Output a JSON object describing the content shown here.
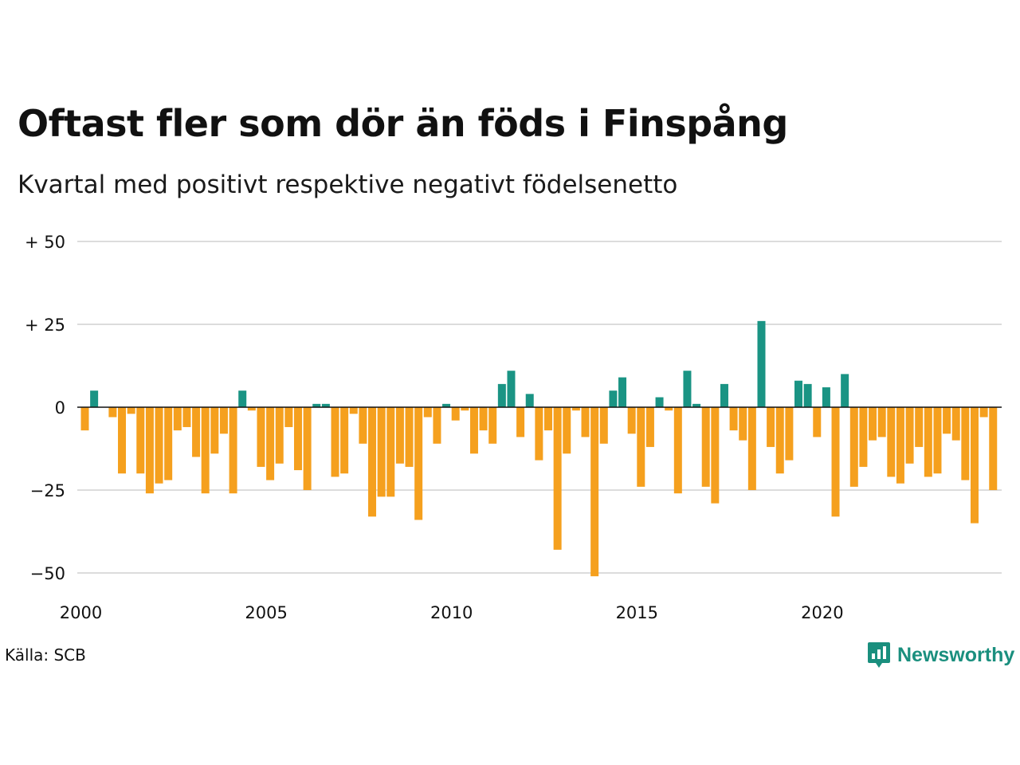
{
  "title": "Oftast fler som dör än föds i Finspång",
  "subtitle": "Kvartal med positivt respektive negativt födelsenetto",
  "source": "Källa: SCB",
  "brand": "Newsworthy",
  "colors": {
    "positive": "#1a9484",
    "negative": "#f5a01e",
    "grid": "#dcdcdc",
    "zero": "#111111",
    "brand": "#1a8f7e"
  },
  "chart_data": {
    "type": "bar",
    "x_start_year": 2000,
    "periods_per_year": 4,
    "values": [
      -7,
      5,
      0,
      -3,
      -20,
      -2,
      -20,
      -26,
      -23,
      -22,
      -7,
      -6,
      -15,
      -26,
      -14,
      -8,
      -26,
      5,
      -1,
      -18,
      -22,
      -17,
      -6,
      -19,
      -25,
      1,
      1,
      -21,
      -20,
      -2,
      -11,
      -33,
      -27,
      -27,
      -17,
      -18,
      -34,
      -3,
      -11,
      1,
      -4,
      -1,
      -14,
      -7,
      -11,
      7,
      11,
      -9,
      4,
      -16,
      -7,
      -43,
      -14,
      -1,
      -9,
      -51,
      -11,
      5,
      9,
      -8,
      -24,
      -12,
      3,
      -1,
      -26,
      11,
      1,
      -24,
      -29,
      7,
      -7,
      -10,
      -25,
      26,
      -12,
      -20,
      -16,
      8,
      7,
      -9,
      6,
      -33,
      10,
      -24,
      -18,
      -10,
      -9,
      -21,
      -23,
      -17,
      -12,
      -21,
      -20,
      -8,
      -10,
      -22,
      -35,
      -3,
      -25
    ],
    "ylim": [
      -50,
      50
    ],
    "yticks": [
      {
        "value": 50,
        "label": "+ 50"
      },
      {
        "value": 25,
        "label": "+ 25"
      },
      {
        "value": 0,
        "label": "0"
      },
      {
        "value": -25,
        "label": "−25"
      },
      {
        "value": -50,
        "label": "−50"
      }
    ],
    "xticks": [
      {
        "year": 2000,
        "label": "2000"
      },
      {
        "year": 2005,
        "label": "2005"
      },
      {
        "year": 2010,
        "label": "2010"
      },
      {
        "year": 2015,
        "label": "2015"
      },
      {
        "year": 2020,
        "label": "2020"
      }
    ],
    "grid": true,
    "legend": "none"
  }
}
